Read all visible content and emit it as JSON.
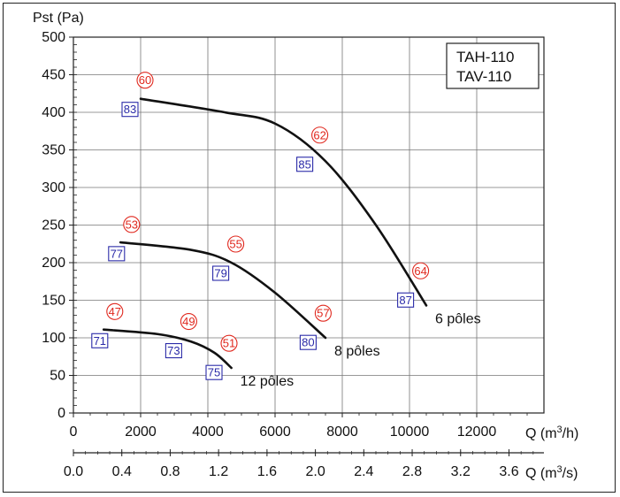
{
  "chart_data": {
    "type": "line",
    "title": "",
    "ylabel": "Pst (Pa)",
    "xlabel": "Q (m3/h)",
    "xlabel_main": "Q (m",
    "xlabel_sup": "3",
    "xlabel_tail": "/h)",
    "x2label_main": "Q (m",
    "x2label_sup": "3",
    "x2label_tail": "/s)",
    "xlim": [
      0,
      14000
    ],
    "ylim": [
      0,
      500
    ],
    "x_ticks": [
      "0",
      "2000",
      "4000",
      "6000",
      "8000",
      "10000",
      "12000"
    ],
    "x2_ticks": [
      "0.0",
      "0.4",
      "0.8",
      "1.2",
      "1.6",
      "2.0",
      "2.4",
      "2.8",
      "3.2",
      "3.6"
    ],
    "y_ticks": [
      "0",
      "50",
      "100",
      "150",
      "200",
      "250",
      "300",
      "350",
      "400",
      "450",
      "500"
    ],
    "grid": true,
    "legend_lines": [
      "TAH-110",
      "TAV-110"
    ],
    "series": [
      {
        "name": "6 pôles",
        "points": [
          [
            2000,
            418
          ],
          [
            4500,
            400
          ],
          [
            6000,
            385
          ],
          [
            7500,
            335
          ],
          [
            9000,
            250
          ],
          [
            10500,
            143
          ]
        ],
        "labels": [
          {
            "x": 2000,
            "lw": "83",
            "lp": "60"
          },
          {
            "x": 7200,
            "lw": "85",
            "lp": "62"
          },
          {
            "x": 10200,
            "lw": "87",
            "lp": "64"
          }
        ]
      },
      {
        "name": "8 pôles",
        "points": [
          [
            1400,
            227
          ],
          [
            3500,
            217
          ],
          [
            4700,
            200
          ],
          [
            6000,
            160
          ],
          [
            7500,
            100
          ]
        ],
        "labels": [
          {
            "x": 1600,
            "lw": "77",
            "lp": "53"
          },
          {
            "x": 4700,
            "lw": "79",
            "lp": "55"
          },
          {
            "x": 7300,
            "lw": "80",
            "lp": "57"
          }
        ]
      },
      {
        "name": "12 pôles",
        "points": [
          [
            900,
            111
          ],
          [
            2500,
            105
          ],
          [
            3500,
            95
          ],
          [
            4200,
            80
          ],
          [
            4700,
            60
          ]
        ],
        "labels": [
          {
            "x": 1100,
            "lw": "71",
            "lp": "47"
          },
          {
            "x": 3300,
            "lw": "73",
            "lp": "49"
          },
          {
            "x": 4500,
            "lw": "75",
            "lp": "51"
          }
        ]
      }
    ]
  }
}
